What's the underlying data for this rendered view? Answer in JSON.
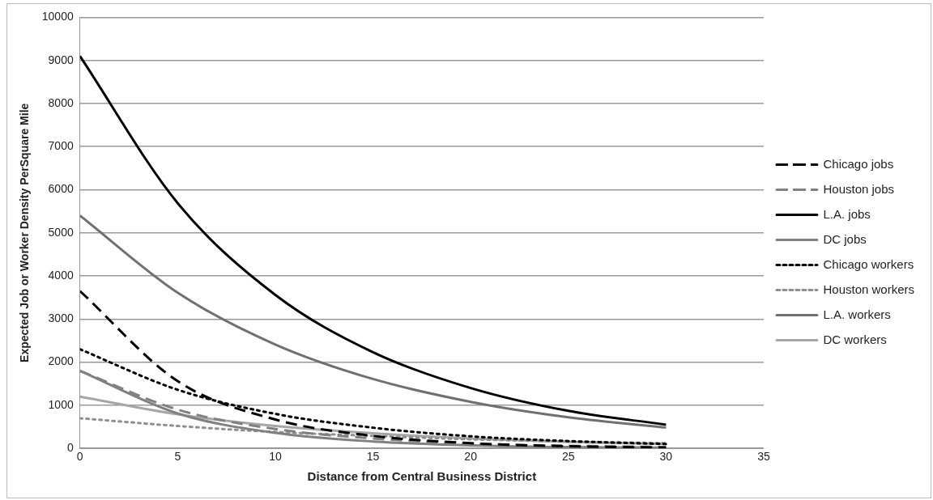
{
  "chart_data": {
    "type": "line",
    "xlabel": "Distance from Central Business District",
    "ylabel": "Expected Job or Worker Density PerSquare Mile",
    "x": [
      0,
      5,
      10,
      15,
      20,
      25,
      30
    ],
    "series": [
      {
        "name": "Chicago jobs",
        "color": "#000000",
        "line_style": "dashed",
        "values": [
          3650,
          1560,
          670,
          290,
          120,
          50,
          20
        ]
      },
      {
        "name": "Houston jobs",
        "color": "#808080",
        "line_style": "dashed",
        "values": [
          1800,
          900,
          450,
          230,
          110,
          60,
          30
        ]
      },
      {
        "name": "L.A. jobs",
        "color": "#000000",
        "line_style": "solid",
        "values": [
          9100,
          5690,
          3560,
          2230,
          1400,
          870,
          550
        ]
      },
      {
        "name": "DC jobs",
        "color": "#808080",
        "line_style": "solid",
        "values": [
          1800,
          810,
          360,
          160,
          70,
          30,
          20
        ]
      },
      {
        "name": "Chicago workers",
        "color": "#000000",
        "line_style": "dotted",
        "values": [
          2300,
          1360,
          800,
          480,
          280,
          170,
          100
        ]
      },
      {
        "name": "Houston workers",
        "color": "#909090",
        "line_style": "dotted",
        "values": [
          700,
          520,
          380,
          290,
          210,
          160,
          120
        ]
      },
      {
        "name": "L.A. workers",
        "color": "#707070",
        "line_style": "solid",
        "values": [
          5400,
          3610,
          2410,
          1610,
          1080,
          720,
          480
        ]
      },
      {
        "name": "DC workers",
        "color": "#a6a6a6",
        "line_style": "solid",
        "values": [
          1200,
          790,
          520,
          350,
          230,
          150,
          100
        ]
      }
    ],
    "xlim": [
      0,
      35
    ],
    "xticks": [
      0,
      5,
      10,
      15,
      20,
      25,
      30,
      35
    ],
    "ylim": [
      0,
      10000
    ],
    "yticks": [
      0,
      1000,
      2000,
      3000,
      4000,
      5000,
      6000,
      7000,
      8000,
      9000,
      10000
    ],
    "grid": "y",
    "legend": "right",
    "marker": "none"
  }
}
